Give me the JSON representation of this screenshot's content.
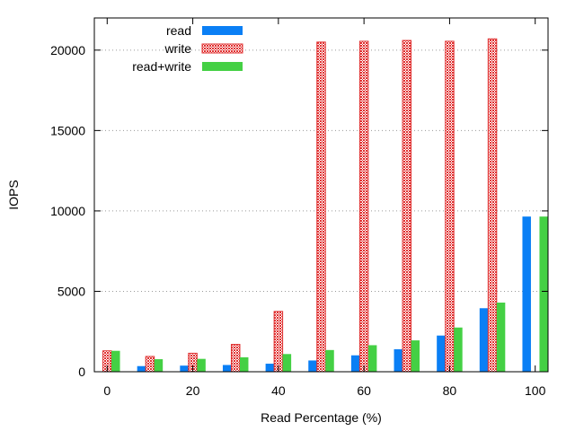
{
  "chart_data": {
    "type": "bar",
    "xlabel": "Read Percentage (%)",
    "ylabel": "IOPS",
    "x": [
      0,
      10,
      20,
      30,
      40,
      50,
      60,
      70,
      80,
      90,
      100
    ],
    "xlim": [
      -3,
      103
    ],
    "ylim": [
      0,
      22000
    ],
    "xticks": [
      0,
      20,
      40,
      60,
      80,
      100
    ],
    "yticks": [
      0,
      5000,
      10000,
      15000,
      20000
    ],
    "grid": "horizontal dotted",
    "legend_position": "top-left",
    "series": [
      {
        "name": "read",
        "color": "#0a7ff5",
        "pattern": "solid",
        "values": [
          0,
          350,
          380,
          420,
          500,
          700,
          1020,
          1400,
          2250,
          3950,
          9650
        ]
      },
      {
        "name": "write",
        "color": "#e03030",
        "pattern": "checkered",
        "values": [
          1300,
          950,
          1150,
          1700,
          3750,
          20500,
          20550,
          20600,
          20550,
          20700,
          0
        ]
      },
      {
        "name": "read+write",
        "color": "#44d044",
        "pattern": "solid",
        "values": [
          1300,
          780,
          800,
          900,
          1100,
          1350,
          1650,
          1950,
          2750,
          4300,
          9650
        ]
      }
    ]
  }
}
